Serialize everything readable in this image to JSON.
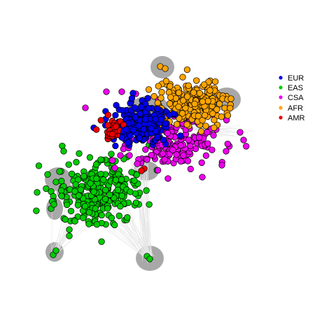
{
  "legend": {
    "items": [
      {
        "label": "EUR",
        "color": "#0000ee"
      },
      {
        "label": "EAS",
        "color": "#00cc00"
      },
      {
        "label": "CSA",
        "color": "#ee00ee"
      },
      {
        "label": "AFR",
        "color": "#ffa500"
      },
      {
        "label": "AMR",
        "color": "#ee0000"
      }
    ]
  },
  "colors": {
    "hull": "#a8a8a8",
    "edge": "#e6e6e6",
    "node_stroke": "#000000"
  }
}
